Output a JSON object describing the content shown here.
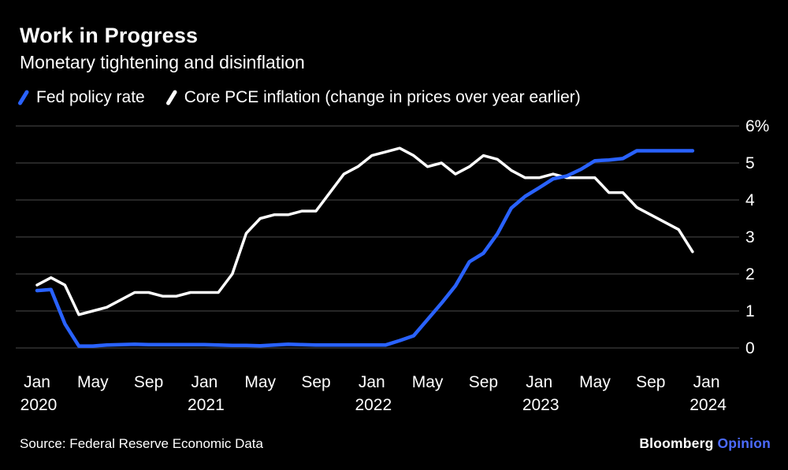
{
  "header": {
    "title": "Work in Progress",
    "subtitle": "Monetary tightening and disinflation"
  },
  "footer": {
    "source": "Source: Federal Reserve Economic Data",
    "brand": "Bloomberg",
    "brand_suffix": "Opinion"
  },
  "colors": {
    "background": "#000000",
    "text": "#ffffff",
    "gridline": "#3d3d3d",
    "fed_line": "#2962ff",
    "pce_line": "#ffffff",
    "brand_accent": "#4c6bff"
  },
  "chart_data": {
    "type": "line",
    "title": "Work in Progress",
    "subtitle": "Monetary tightening and disinflation",
    "x_unit": "months from Jan 2020 (monthly data, Jan 2020 - Dec 2023)",
    "ylabel": "%",
    "ylim": [
      0,
      6
    ],
    "grid": "horizontal",
    "legend_position": "top-left",
    "y_ticks": [
      {
        "value": 6,
        "label": "6%"
      },
      {
        "value": 5,
        "label": "5"
      },
      {
        "value": 4,
        "label": "4"
      },
      {
        "value": 3,
        "label": "3"
      },
      {
        "value": 2,
        "label": "2"
      },
      {
        "value": 1,
        "label": "1"
      },
      {
        "value": 0,
        "label": "0"
      }
    ],
    "x_ticks": [
      {
        "month": 0,
        "label": "Jan",
        "year": "2020"
      },
      {
        "month": 4,
        "label": "May"
      },
      {
        "month": 8,
        "label": "Sep"
      },
      {
        "month": 12,
        "label": "Jan",
        "year": "2021"
      },
      {
        "month": 16,
        "label": "May"
      },
      {
        "month": 20,
        "label": "Sep"
      },
      {
        "month": 24,
        "label": "Jan",
        "year": "2022"
      },
      {
        "month": 28,
        "label": "May"
      },
      {
        "month": 32,
        "label": "Sep"
      },
      {
        "month": 36,
        "label": "Jan",
        "year": "2023"
      },
      {
        "month": 40,
        "label": "May"
      },
      {
        "month": 44,
        "label": "Sep"
      },
      {
        "month": 48,
        "label": "Jan",
        "year": "2024"
      }
    ],
    "series": [
      {
        "id": "fed-policy-rate-line",
        "name": "Fed policy rate",
        "color": "#2962ff",
        "width": 4.5,
        "values": [
          1.55,
          1.58,
          0.65,
          0.05,
          0.05,
          0.08,
          0.09,
          0.1,
          0.09,
          0.09,
          0.09,
          0.09,
          0.09,
          0.08,
          0.07,
          0.07,
          0.06,
          0.08,
          0.1,
          0.09,
          0.08,
          0.08,
          0.08,
          0.08,
          0.08,
          0.08,
          0.2,
          0.33,
          0.77,
          1.21,
          1.68,
          2.33,
          2.56,
          3.08,
          3.78,
          4.1,
          4.33,
          4.57,
          4.65,
          4.83,
          5.06,
          5.08,
          5.12,
          5.33,
          5.33,
          5.33,
          5.33,
          5.33
        ]
      },
      {
        "id": "core-pce-inflation-line",
        "name": "Core PCE inflation (change in prices over year earlier)",
        "color": "#ffffff",
        "width": 3.5,
        "values": [
          1.7,
          1.9,
          1.7,
          0.9,
          1.0,
          1.1,
          1.3,
          1.5,
          1.5,
          1.4,
          1.4,
          1.5,
          1.5,
          1.5,
          2.0,
          3.1,
          3.5,
          3.6,
          3.6,
          3.7,
          3.7,
          4.2,
          4.7,
          4.9,
          5.2,
          5.3,
          5.4,
          5.2,
          4.9,
          5.0,
          4.7,
          4.9,
          5.2,
          5.1,
          4.8,
          4.6,
          4.6,
          4.7,
          4.6,
          4.6,
          4.6,
          4.2,
          4.2,
          3.8,
          3.6,
          3.4,
          3.2,
          2.6
        ]
      }
    ]
  }
}
